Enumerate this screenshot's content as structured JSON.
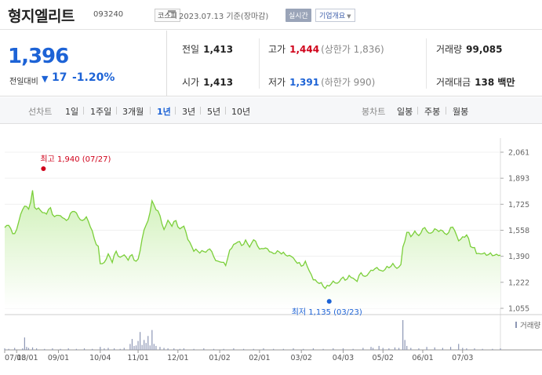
{
  "header": {
    "title": "형지엘리트",
    "code": "093240",
    "market": "코스피",
    "date": "2023.07.13 기준(장마감)",
    "realtime_label": "실시간",
    "company_label": "기업개요"
  },
  "price": {
    "current": "1,396",
    "change_label": "전일대비",
    "change_value": "17",
    "change_pct": "-1.20%"
  },
  "stats": {
    "prev_label": "전일",
    "prev": "1,413",
    "high_label": "고가",
    "high": "1,444",
    "upper_limit": "(상한가 1,836)",
    "volume_label": "거래량",
    "volume": "99,085",
    "open_label": "시가",
    "open": "1,413",
    "low_label": "저가",
    "low": "1,391",
    "lower_limit": "(하한가 990)",
    "amount_label": "거래대금",
    "amount": "138 백만"
  },
  "periods": {
    "line_label": "선차트",
    "line_items": [
      "1일",
      "1주일",
      "3개월",
      "1년",
      "3년",
      "5년",
      "10년"
    ],
    "active": "1년",
    "candle_label": "봉차트",
    "candle_items": [
      "일봉",
      "주봉",
      "월봉"
    ]
  },
  "colors": {
    "up": "#d0021b",
    "down": "#1d63d6",
    "line": "#7bcf3a",
    "fill_top": "#d8f5c4"
  },
  "chart_data": {
    "type": "area",
    "title": "",
    "ylim": [
      1055,
      2061
    ],
    "y_ticks": [
      "2,061",
      "1,893",
      "1,725",
      "1,558",
      "1,390",
      "1,222",
      "1,055"
    ],
    "x_ticks": [
      "07/13",
      "08/01",
      "09/01",
      "10/04",
      "11/01",
      "12/01",
      "01/02",
      "02/01",
      "03/02",
      "04/03",
      "05/02",
      "06/01",
      "07/03"
    ],
    "x_tick_pos": [
      0,
      6,
      27,
      48,
      67,
      87,
      108,
      128,
      149,
      170,
      190,
      210,
      230
    ],
    "n": 250,
    "high_annotation": "최고 1,940 (07/27)",
    "low_annotation": "최저 1,135 (03/23)",
    "high_point": {
      "x": 10,
      "y": 1940
    },
    "low_point": {
      "x": 163,
      "y": 1135
    },
    "volume_label": "거래량",
    "price_keypoints": [
      [
        0,
        1570
      ],
      [
        2,
        1600
      ],
      [
        4,
        1530
      ],
      [
        6,
        1560
      ],
      [
        8,
        1660
      ],
      [
        10,
        1720
      ],
      [
        12,
        1690
      ],
      [
        14,
        1810
      ],
      [
        15,
        1700
      ],
      [
        17,
        1700
      ],
      [
        19,
        1670
      ],
      [
        21,
        1670
      ],
      [
        23,
        1700
      ],
      [
        25,
        1640
      ],
      [
        27,
        1660
      ],
      [
        29,
        1640
      ],
      [
        31,
        1620
      ],
      [
        33,
        1660
      ],
      [
        35,
        1690
      ],
      [
        37,
        1640
      ],
      [
        39,
        1620
      ],
      [
        41,
        1640
      ],
      [
        43,
        1590
      ],
      [
        45,
        1500
      ],
      [
        47,
        1450
      ],
      [
        48,
        1340
      ],
      [
        50,
        1350
      ],
      [
        52,
        1400
      ],
      [
        54,
        1360
      ],
      [
        56,
        1420
      ],
      [
        58,
        1380
      ],
      [
        60,
        1400
      ],
      [
        62,
        1370
      ],
      [
        64,
        1400
      ],
      [
        66,
        1350
      ],
      [
        67,
        1370
      ],
      [
        70,
        1560
      ],
      [
        72,
        1620
      ],
      [
        74,
        1740
      ],
      [
        76,
        1700
      ],
      [
        78,
        1650
      ],
      [
        80,
        1560
      ],
      [
        82,
        1620
      ],
      [
        84,
        1590
      ],
      [
        86,
        1620
      ],
      [
        88,
        1560
      ],
      [
        90,
        1590
      ],
      [
        92,
        1500
      ],
      [
        95,
        1430
      ],
      [
        98,
        1420
      ],
      [
        101,
        1420
      ],
      [
        103,
        1440
      ],
      [
        105,
        1390
      ],
      [
        107,
        1350
      ],
      [
        109,
        1360
      ],
      [
        111,
        1330
      ],
      [
        113,
        1430
      ],
      [
        115,
        1460
      ],
      [
        117,
        1490
      ],
      [
        119,
        1460
      ],
      [
        121,
        1490
      ],
      [
        123,
        1450
      ],
      [
        125,
        1500
      ],
      [
        127,
        1460
      ],
      [
        129,
        1430
      ],
      [
        131,
        1450
      ],
      [
        133,
        1420
      ],
      [
        135,
        1410
      ],
      [
        138,
        1420
      ],
      [
        141,
        1400
      ],
      [
        144,
        1390
      ],
      [
        147,
        1350
      ],
      [
        149,
        1330
      ],
      [
        151,
        1350
      ],
      [
        153,
        1300
      ],
      [
        155,
        1240
      ],
      [
        158,
        1220
      ],
      [
        161,
        1190
      ],
      [
        163,
        1200
      ],
      [
        165,
        1230
      ],
      [
        167,
        1210
      ],
      [
        169,
        1250
      ],
      [
        171,
        1240
      ],
      [
        173,
        1260
      ],
      [
        175,
        1250
      ],
      [
        177,
        1230
      ],
      [
        179,
        1290
      ],
      [
        181,
        1250
      ],
      [
        183,
        1290
      ],
      [
        185,
        1300
      ],
      [
        187,
        1320
      ],
      [
        189,
        1290
      ],
      [
        191,
        1310
      ],
      [
        193,
        1320
      ],
      [
        195,
        1340
      ],
      [
        197,
        1310
      ],
      [
        199,
        1340
      ],
      [
        200,
        1440
      ],
      [
        202,
        1550
      ],
      [
        204,
        1520
      ],
      [
        206,
        1550
      ],
      [
        208,
        1520
      ],
      [
        210,
        1570
      ],
      [
        212,
        1560
      ],
      [
        214,
        1530
      ],
      [
        216,
        1570
      ],
      [
        218,
        1550
      ],
      [
        220,
        1560
      ],
      [
        222,
        1520
      ],
      [
        224,
        1580
      ],
      [
        226,
        1560
      ],
      [
        228,
        1490
      ],
      [
        230,
        1510
      ],
      [
        232,
        1530
      ],
      [
        234,
        1460
      ],
      [
        236,
        1440
      ],
      [
        237,
        1410
      ],
      [
        249,
        1396
      ]
    ],
    "volume_bars": [
      [
        0,
        3
      ],
      [
        2,
        2
      ],
      [
        5,
        4
      ],
      [
        9,
        3
      ],
      [
        10,
        25
      ],
      [
        11,
        6
      ],
      [
        12,
        4
      ],
      [
        14,
        5
      ],
      [
        16,
        3
      ],
      [
        20,
        2
      ],
      [
        24,
        3
      ],
      [
        28,
        2
      ],
      [
        32,
        3
      ],
      [
        36,
        2
      ],
      [
        40,
        3
      ],
      [
        44,
        2
      ],
      [
        48,
        6
      ],
      [
        50,
        3
      ],
      [
        52,
        4
      ],
      [
        55,
        3
      ],
      [
        58,
        2
      ],
      [
        60,
        4
      ],
      [
        63,
        12
      ],
      [
        64,
        22
      ],
      [
        65,
        8
      ],
      [
        66,
        9
      ],
      [
        67,
        18
      ],
      [
        68,
        36
      ],
      [
        69,
        10
      ],
      [
        70,
        20
      ],
      [
        71,
        14
      ],
      [
        72,
        28
      ],
      [
        73,
        9
      ],
      [
        74,
        40
      ],
      [
        75,
        12
      ],
      [
        76,
        8
      ],
      [
        78,
        6
      ],
      [
        80,
        4
      ],
      [
        82,
        3
      ],
      [
        85,
        3
      ],
      [
        88,
        2
      ],
      [
        90,
        3
      ],
      [
        95,
        2
      ],
      [
        100,
        3
      ],
      [
        105,
        2
      ],
      [
        110,
        2
      ],
      [
        115,
        3
      ],
      [
        120,
        2
      ],
      [
        125,
        2
      ],
      [
        130,
        3
      ],
      [
        135,
        2
      ],
      [
        140,
        2
      ],
      [
        145,
        3
      ],
      [
        150,
        2
      ],
      [
        155,
        3
      ],
      [
        160,
        2
      ],
      [
        165,
        3
      ],
      [
        170,
        3
      ],
      [
        175,
        2
      ],
      [
        180,
        4
      ],
      [
        184,
        6
      ],
      [
        185,
        4
      ],
      [
        188,
        8
      ],
      [
        190,
        4
      ],
      [
        193,
        3
      ],
      [
        196,
        5
      ],
      [
        198,
        4
      ],
      [
        200,
        60
      ],
      [
        201,
        20
      ],
      [
        202,
        8
      ],
      [
        204,
        4
      ],
      [
        208,
        3
      ],
      [
        212,
        6
      ],
      [
        216,
        5
      ],
      [
        220,
        4
      ],
      [
        224,
        6
      ],
      [
        228,
        12
      ],
      [
        230,
        4
      ],
      [
        232,
        3
      ],
      [
        236,
        3
      ],
      [
        240,
        2
      ],
      [
        245,
        2
      ],
      [
        249,
        3
      ]
    ]
  }
}
